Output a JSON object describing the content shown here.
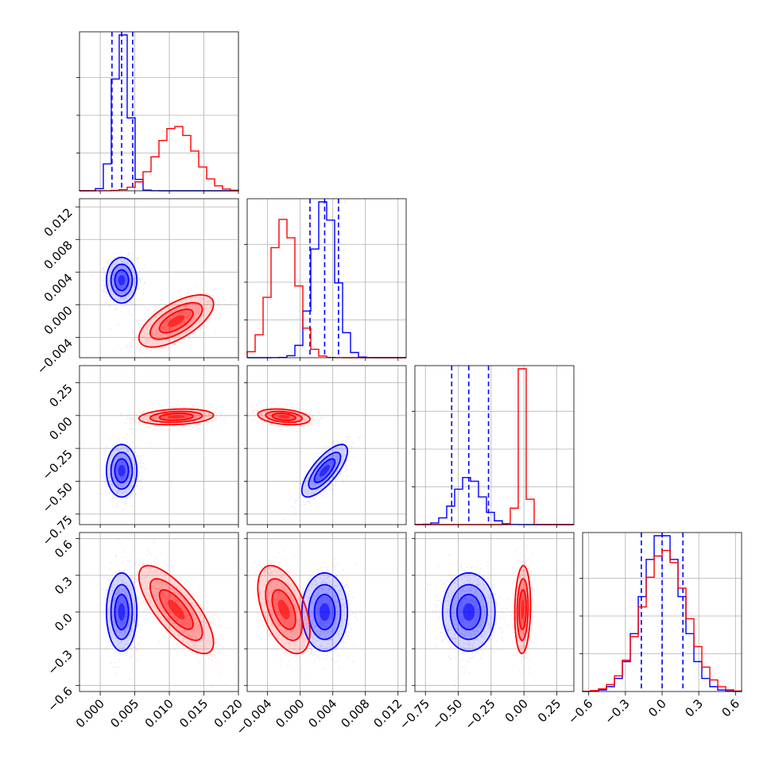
{
  "chart_data": {
    "type": "corner",
    "grid": true,
    "legend": "none",
    "colors": {
      "series_a": "#0000ff",
      "series_b": "#ff0000"
    },
    "parameters": [
      {
        "range": [
          -0.003,
          0.02
        ],
        "ticks": [
          0.0,
          0.005,
          0.01,
          0.015,
          0.02
        ],
        "tick_labels": [
          "0.000",
          "0.005",
          "0.010",
          "0.015",
          "0.020"
        ]
      },
      {
        "range": [
          -0.0065,
          0.013
        ],
        "ticks": [
          -0.004,
          0.0,
          0.004,
          0.008,
          0.012
        ],
        "tick_labels": [
          "−0.004",
          "0.000",
          "0.004",
          "0.008",
          "0.012"
        ]
      },
      {
        "range": [
          -0.83,
          0.38
        ],
        "ticks": [
          -0.75,
          -0.5,
          -0.25,
          0.0,
          0.25
        ],
        "tick_labels": [
          "−0.75",
          "−0.50",
          "−0.25",
          "0.00",
          "0.25"
        ]
      },
      {
        "range": [
          -0.65,
          0.65
        ],
        "ticks": [
          -0.6,
          -0.3,
          0.0,
          0.3,
          0.6
        ],
        "tick_labels": [
          "−0.6",
          "−0.3",
          "0.0",
          "0.3",
          "0.6"
        ]
      }
    ],
    "series": [
      {
        "color": "#0000ff",
        "means": [
          0.0031,
          0.003,
          -0.42,
          0.0
        ],
        "stds": [
          0.0011,
          0.0014,
          0.1,
          0.16
        ],
        "correlations": {
          "0-1": 0.0,
          "0-2": 0.0,
          "0-3": 0.0,
          "1-2": 0.75,
          "1-3": 0.0,
          "2-3": 0.0
        },
        "quantile_lines": [
          [
            0.0017,
            0.0031,
            0.0047
          ],
          [
            0.0012,
            0.003,
            0.0047
          ],
          [
            -0.55,
            -0.42,
            -0.27
          ],
          [
            -0.17,
            0.0,
            0.17
          ]
        ]
      },
      {
        "color": "#ff0000",
        "means": [
          0.011,
          -0.002,
          -0.01,
          0.02
        ],
        "stds": [
          0.0027,
          0.0016,
          0.03,
          0.18
        ],
        "correlations": {
          "0-1": 0.65,
          "0-2": 0.2,
          "0-3": -0.75,
          "1-2": -0.3,
          "1-3": -0.5,
          "2-3": 0.1
        }
      }
    ]
  }
}
